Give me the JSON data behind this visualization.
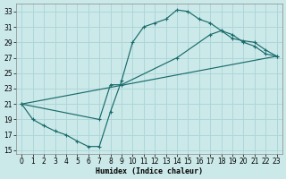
{
  "xlabel": "Humidex (Indice chaleur)",
  "xlim": [
    -0.5,
    23.5
  ],
  "ylim": [
    14.5,
    34.0
  ],
  "xticks": [
    0,
    1,
    2,
    3,
    4,
    5,
    6,
    7,
    8,
    9,
    10,
    11,
    12,
    13,
    14,
    15,
    16,
    17,
    18,
    19,
    20,
    21,
    22,
    23
  ],
  "yticks": [
    15,
    17,
    19,
    21,
    23,
    25,
    27,
    29,
    31,
    33
  ],
  "bg_color": "#cce9ea",
  "grid_color": "#aed6d8",
  "line_color": "#1a6b6b",
  "line1_x": [
    0,
    1,
    2,
    3,
    4,
    5,
    6,
    7,
    8,
    9,
    10,
    11,
    12,
    13,
    14,
    15,
    16,
    17,
    18,
    19,
    20,
    21,
    22,
    23
  ],
  "line1_y": [
    21,
    19,
    18.2,
    17.5,
    17.0,
    16.2,
    15.5,
    15.5,
    20.0,
    24.0,
    29.0,
    31.0,
    31.5,
    32.0,
    33.2,
    33.0,
    32.0,
    31.5,
    30.5,
    30.0,
    29.0,
    28.5,
    27.5,
    27.2
  ],
  "line2_x": [
    0,
    23
  ],
  "line2_y": [
    21,
    27.2
  ],
  "line3_x": [
    0,
    7,
    8,
    9,
    14,
    17,
    18,
    19,
    20,
    21,
    22,
    23
  ],
  "line3_y": [
    21,
    19.0,
    23.5,
    23.5,
    27.0,
    30.0,
    30.5,
    29.5,
    29.2,
    29.0,
    28.0,
    27.2
  ]
}
